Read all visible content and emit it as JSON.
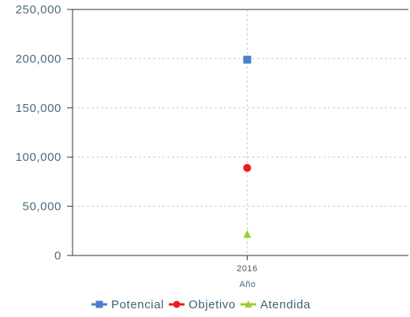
{
  "chart_data": {
    "type": "scatter",
    "categories": [
      "2016"
    ],
    "xlabel": "Año",
    "ylabel": "",
    "ylim": [
      0,
      250000
    ],
    "yticks": [
      "0",
      "50,000",
      "100,000",
      "150,000",
      "200,000",
      "250,000"
    ],
    "ytick_values": [
      0,
      50000,
      100000,
      150000,
      200000,
      250000
    ],
    "grid": true,
    "legend_position": "bottom-center",
    "series": [
      {
        "name": "Potencial",
        "values": [
          199000
        ],
        "color": "#4a7fcc",
        "marker": "square"
      },
      {
        "name": "Objetivo",
        "values": [
          89000
        ],
        "color": "#ee1c1c",
        "marker": "circle"
      },
      {
        "name": "Atendida",
        "values": [
          21500
        ],
        "color": "#9acd32",
        "marker": "triangle"
      }
    ]
  }
}
